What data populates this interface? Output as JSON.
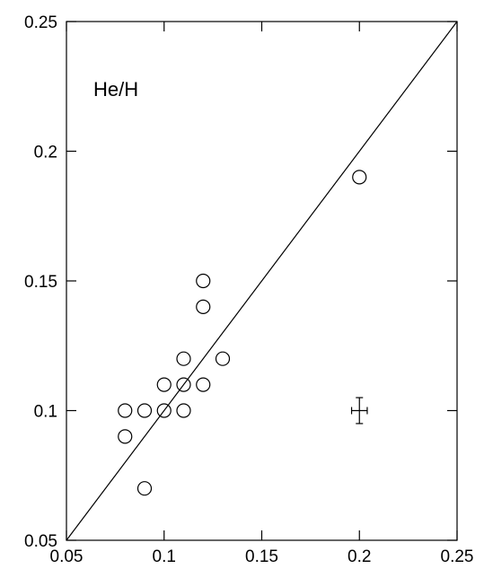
{
  "chart_data": {
    "type": "scatter",
    "annotation": "He/H",
    "xlim": [
      0.05,
      0.25
    ],
    "ylim": [
      0.05,
      0.25
    ],
    "x_ticks": [
      "0.05",
      "0.1",
      "0.15",
      "0.2",
      "0.25"
    ],
    "y_ticks": [
      "0.05",
      "0.1",
      "0.15",
      "0.2",
      "0.25"
    ],
    "x_tick_values": [
      0.05,
      0.1,
      0.15,
      0.2,
      0.25
    ],
    "y_tick_values": [
      0.05,
      0.1,
      0.15,
      0.2,
      0.25
    ],
    "grid": false,
    "reference_line": {
      "type": "y=x",
      "from": [
        0.05,
        0.05
      ],
      "to": [
        0.25,
        0.25
      ]
    },
    "points": [
      {
        "x": 0.08,
        "y": 0.1
      },
      {
        "x": 0.08,
        "y": 0.09
      },
      {
        "x": 0.09,
        "y": 0.1
      },
      {
        "x": 0.09,
        "y": 0.07
      },
      {
        "x": 0.1,
        "y": 0.11
      },
      {
        "x": 0.1,
        "y": 0.1
      },
      {
        "x": 0.11,
        "y": 0.12
      },
      {
        "x": 0.11,
        "y": 0.11
      },
      {
        "x": 0.11,
        "y": 0.1
      },
      {
        "x": 0.12,
        "y": 0.15
      },
      {
        "x": 0.12,
        "y": 0.14
      },
      {
        "x": 0.12,
        "y": 0.11
      },
      {
        "x": 0.13,
        "y": 0.12
      },
      {
        "x": 0.2,
        "y": 0.19
      }
    ],
    "error_bar": {
      "x": 0.2,
      "y": 0.1,
      "xerr": 0.004,
      "yerr": 0.005
    }
  }
}
